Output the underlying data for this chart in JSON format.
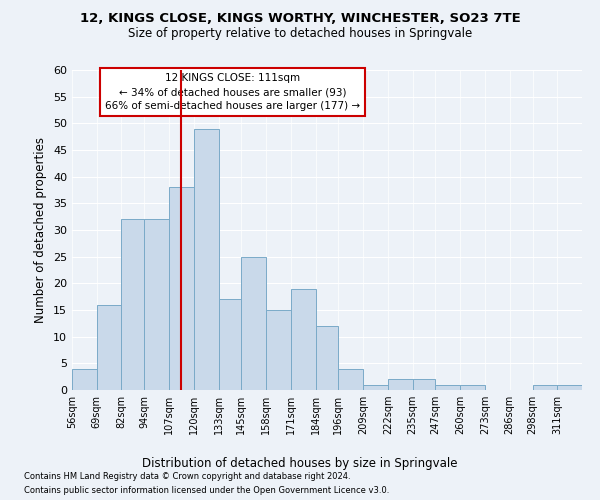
{
  "title": "12, KINGS CLOSE, KINGS WORTHY, WINCHESTER, SO23 7TE",
  "subtitle": "Size of property relative to detached houses in Springvale",
  "xlabel": "Distribution of detached houses by size in Springvale",
  "ylabel": "Number of detached properties",
  "footer1": "Contains HM Land Registry data © Crown copyright and database right 2024.",
  "footer2": "Contains public sector information licensed under the Open Government Licence v3.0.",
  "annotation_line1": "12 KINGS CLOSE: 111sqm",
  "annotation_line2": "← 34% of detached houses are smaller (93)",
  "annotation_line3": "66% of semi-detached houses are larger (177) →",
  "bar_color": "#c9d9ea",
  "bar_edge_color": "#7aaac8",
  "vline_color": "#cc0000",
  "vline_x": 113.5,
  "bins": [
    56,
    69,
    82,
    94,
    107,
    120,
    133,
    145,
    158,
    171,
    184,
    196,
    209,
    222,
    235,
    247,
    260,
    273,
    286,
    298,
    311,
    324
  ],
  "counts": [
    4,
    16,
    32,
    32,
    38,
    49,
    17,
    25,
    15,
    19,
    12,
    4,
    1,
    2,
    2,
    1,
    1,
    0,
    0,
    1,
    1
  ],
  "ylim": [
    0,
    60
  ],
  "yticks": [
    0,
    5,
    10,
    15,
    20,
    25,
    30,
    35,
    40,
    45,
    50,
    55,
    60
  ],
  "bg_color": "#edf2f8",
  "plot_bg_color": "#edf2f8",
  "annotation_box_color": "#ffffff",
  "annotation_box_edge": "#cc0000",
  "grid_color": "#ffffff",
  "title_fontsize": 9.5,
  "subtitle_fontsize": 8.5
}
